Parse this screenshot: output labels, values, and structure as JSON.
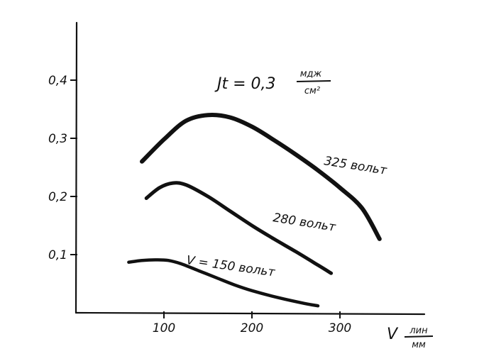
{
  "chart_data": {
    "type": "line",
    "title": "",
    "annotation": {
      "prefix": "Jt = 0,3",
      "unit_numerator": "мдж",
      "unit_denominator": "см²"
    },
    "xlabel": {
      "symbol": "V",
      "unit_numerator": "лин",
      "unit_denominator": "мм"
    },
    "ylabel": "",
    "xlim": [
      0,
      390
    ],
    "ylim": [
      0,
      0.5
    ],
    "x_ticks": [
      100,
      200,
      300
    ],
    "x_tick_labels": [
      "100",
      "200",
      "300"
    ],
    "y_ticks": [
      0.1,
      0.2,
      0.3,
      0.4
    ],
    "y_tick_labels": [
      "0,1",
      "0,2",
      "0,3",
      "0,4"
    ],
    "grid": false,
    "legend": "none",
    "series": [
      {
        "name": "325 вольт",
        "stroke": 6,
        "x": [
          75,
          100,
          125,
          150,
          175,
          200,
          225,
          250,
          275,
          300,
          325,
          345
        ],
        "y": [
          0.26,
          0.298,
          0.33,
          0.34,
          0.336,
          0.32,
          0.297,
          0.272,
          0.245,
          0.215,
          0.18,
          0.127
        ]
      },
      {
        "name": "280 вольт",
        "stroke": 5,
        "x": [
          80,
          95,
          110,
          125,
          150,
          175,
          200,
          225,
          250,
          275,
          290
        ],
        "y": [
          0.197,
          0.215,
          0.223,
          0.22,
          0.2,
          0.175,
          0.15,
          0.127,
          0.105,
          0.082,
          0.068
        ]
      },
      {
        "name": "V = 150 вольт",
        "stroke": 4.5,
        "x": [
          60,
          75,
          90,
          105,
          120,
          140,
          160,
          180,
          200,
          230,
          260,
          275
        ],
        "y": [
          0.087,
          0.09,
          0.091,
          0.09,
          0.084,
          0.072,
          0.06,
          0.048,
          0.038,
          0.026,
          0.016,
          0.012
        ]
      }
    ],
    "series_labels": [
      "325 вольт",
      "280 вольт",
      "V = 150 вольт"
    ]
  }
}
